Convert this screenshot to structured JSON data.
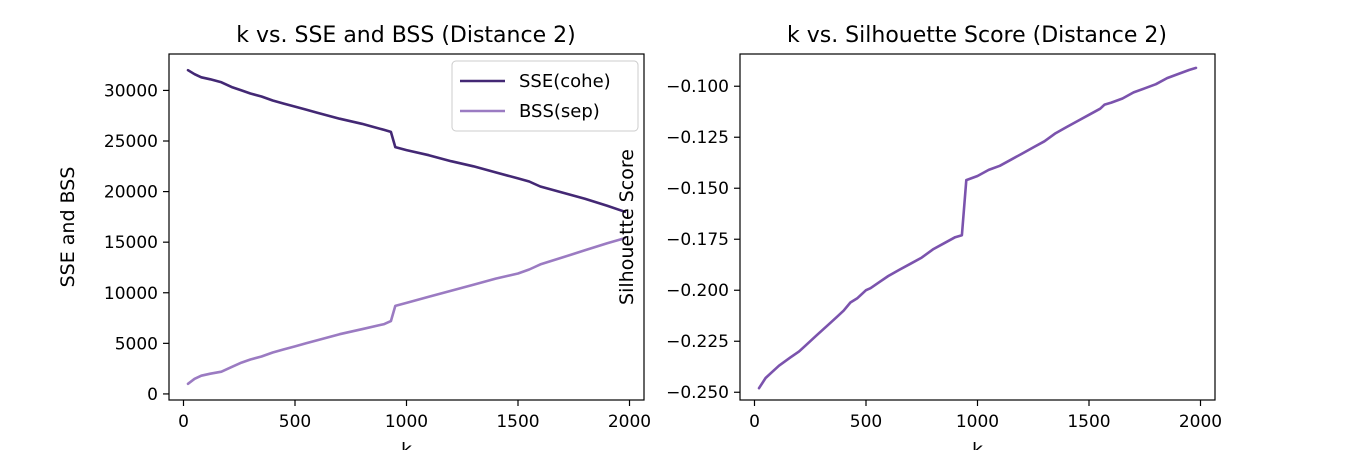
{
  "chart_data": [
    {
      "type": "line",
      "title": "k vs. SSE and BSS (Distance 2)",
      "xlabel": "k",
      "ylabel": "SSE and BSS",
      "xlim": [
        -65,
        2065
      ],
      "ylim": [
        -600,
        33600
      ],
      "xticks": [
        0,
        500,
        1000,
        1500,
        2000
      ],
      "yticks": [
        0,
        5000,
        10000,
        15000,
        20000,
        25000,
        30000
      ],
      "legend": "top-right",
      "grid": false,
      "series": [
        {
          "name": "SSE(cohe)",
          "color": "#432874",
          "x": [
            20,
            50,
            80,
            120,
            170,
            220,
            260,
            300,
            350,
            400,
            450,
            500,
            550,
            600,
            700,
            800,
            900,
            930,
            950,
            1000,
            1100,
            1200,
            1300,
            1400,
            1500,
            1550,
            1570,
            1600,
            1700,
            1800,
            1900,
            1980
          ],
          "y": [
            32000,
            31600,
            31300,
            31100,
            30800,
            30300,
            30000,
            29700,
            29400,
            29000,
            28700,
            28400,
            28100,
            27800,
            27200,
            26700,
            26100,
            25900,
            24400,
            24100,
            23600,
            23000,
            22500,
            21900,
            21300,
            21000,
            20800,
            20500,
            19900,
            19300,
            18600,
            18000
          ]
        },
        {
          "name": "BSS(sep)",
          "color": "#9b7bc2",
          "x": [
            20,
            50,
            80,
            120,
            170,
            220,
            260,
            300,
            350,
            400,
            450,
            500,
            550,
            600,
            700,
            800,
            900,
            930,
            950,
            1000,
            1100,
            1200,
            1300,
            1400,
            1500,
            1550,
            1570,
            1600,
            1700,
            1800,
            1900,
            1980
          ],
          "y": [
            1000,
            1500,
            1800,
            2000,
            2200,
            2700,
            3100,
            3400,
            3700,
            4100,
            4400,
            4700,
            5000,
            5300,
            5900,
            6400,
            6900,
            7200,
            8700,
            9000,
            9600,
            10200,
            10800,
            11400,
            11900,
            12300,
            12500,
            12800,
            13500,
            14200,
            14900,
            15400
          ]
        }
      ]
    },
    {
      "type": "line",
      "title": "k vs. Silhouette Score (Distance 2)",
      "xlabel": "k",
      "ylabel": "Silhouette Score",
      "xlim": [
        -65,
        2065
      ],
      "ylim": [
        -0.2538,
        -0.0842
      ],
      "xticks": [
        0,
        500,
        1000,
        1500,
        2000
      ],
      "yticks": [
        -0.25,
        -0.225,
        -0.2,
        -0.175,
        -0.15,
        -0.125,
        -0.1
      ],
      "ytick_labels": [
        "−0.250",
        "−0.225",
        "−0.200",
        "−0.175",
        "−0.150",
        "−0.125",
        "−0.100"
      ],
      "grid": false,
      "series": [
        {
          "color": "#7b53ad",
          "x": [
            20,
            50,
            80,
            110,
            160,
            200,
            230,
            280,
            330,
            370,
            400,
            430,
            460,
            500,
            520,
            560,
            600,
            650,
            700,
            750,
            800,
            850,
            900,
            930,
            950,
            1000,
            1050,
            1100,
            1150,
            1200,
            1250,
            1300,
            1350,
            1400,
            1450,
            1500,
            1550,
            1570,
            1600,
            1650,
            1700,
            1750,
            1800,
            1850,
            1900,
            1950,
            1980
          ],
          "y": [
            -0.248,
            -0.243,
            -0.24,
            -0.237,
            -0.233,
            -0.23,
            -0.227,
            -0.222,
            -0.217,
            -0.213,
            -0.21,
            -0.206,
            -0.204,
            -0.2,
            -0.199,
            -0.196,
            -0.193,
            -0.19,
            -0.187,
            -0.184,
            -0.18,
            -0.177,
            -0.174,
            -0.173,
            -0.146,
            -0.144,
            -0.141,
            -0.139,
            -0.136,
            -0.133,
            -0.13,
            -0.127,
            -0.123,
            -0.12,
            -0.117,
            -0.114,
            -0.111,
            -0.109,
            -0.108,
            -0.106,
            -0.103,
            -0.101,
            -0.099,
            -0.096,
            -0.094,
            -0.092,
            -0.091
          ]
        }
      ]
    }
  ]
}
